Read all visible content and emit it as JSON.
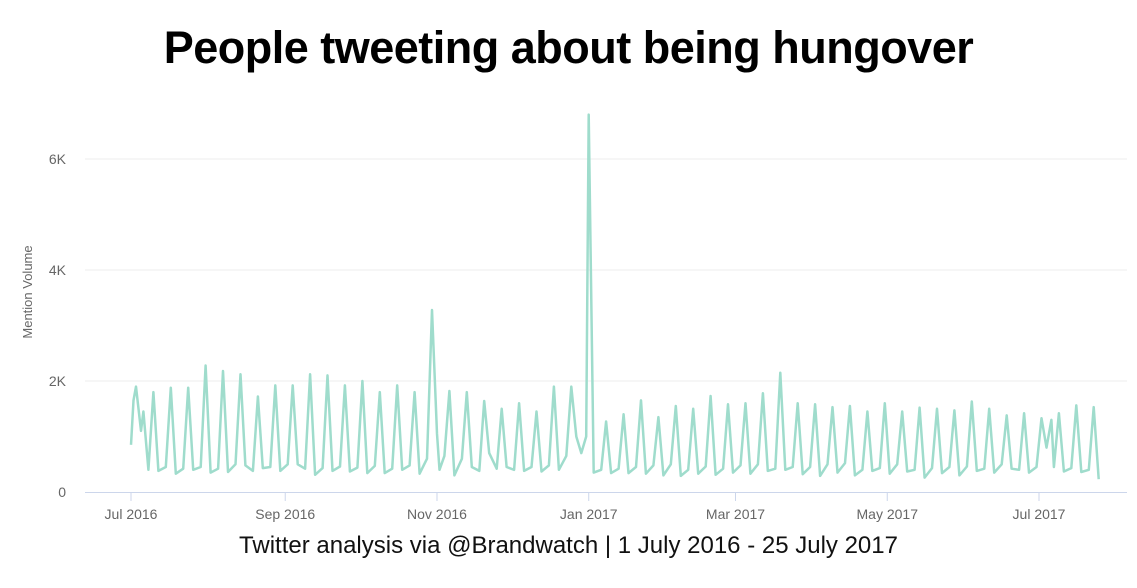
{
  "title": "People tweeting about being hungover",
  "subtitle": "Twitter analysis via @Brandwatch | 1 July 2016 - 25 July 2017",
  "chart_data": {
    "type": "line",
    "ylabel": "Mention Volume",
    "xlabel": "",
    "ylim": [
      0,
      7000
    ],
    "yticks": [
      {
        "v": 0,
        "label": "0"
      },
      {
        "v": 2000,
        "label": "2K"
      },
      {
        "v": 4000,
        "label": "4K"
      },
      {
        "v": 6000,
        "label": "6K"
      }
    ],
    "xticks": [
      {
        "d": "2016-07-01",
        "label": "Jul 2016"
      },
      {
        "d": "2016-09-01",
        "label": "Sep 2016"
      },
      {
        "d": "2016-11-01",
        "label": "Nov 2016"
      },
      {
        "d": "2017-01-01",
        "label": "Jan 2017"
      },
      {
        "d": "2017-03-01",
        "label": "Mar 2017"
      },
      {
        "d": "2017-05-01",
        "label": "May 2017"
      },
      {
        "d": "2017-07-01",
        "label": "Jul 2017"
      }
    ],
    "grid": true,
    "legend": "none",
    "line_color": "#9fdccc",
    "series": [
      {
        "points": [
          [
            "2016-07-01",
            850
          ],
          [
            "2016-07-02",
            1650
          ],
          [
            "2016-07-03",
            1900
          ],
          [
            "2016-07-05",
            1100
          ],
          [
            "2016-07-06",
            1450
          ],
          [
            "2016-07-08",
            400
          ],
          [
            "2016-07-10",
            1800
          ],
          [
            "2016-07-12",
            380
          ],
          [
            "2016-07-15",
            450
          ],
          [
            "2016-07-17",
            1880
          ],
          [
            "2016-07-19",
            330
          ],
          [
            "2016-07-22",
            420
          ],
          [
            "2016-07-24",
            1880
          ],
          [
            "2016-07-26",
            400
          ],
          [
            "2016-07-29",
            450
          ],
          [
            "2016-07-31",
            2280
          ],
          [
            "2016-08-02",
            350
          ],
          [
            "2016-08-05",
            420
          ],
          [
            "2016-08-07",
            2180
          ],
          [
            "2016-08-09",
            360
          ],
          [
            "2016-08-12",
            500
          ],
          [
            "2016-08-14",
            2120
          ],
          [
            "2016-08-16",
            480
          ],
          [
            "2016-08-19",
            380
          ],
          [
            "2016-08-21",
            1720
          ],
          [
            "2016-08-23",
            430
          ],
          [
            "2016-08-26",
            450
          ],
          [
            "2016-08-28",
            1920
          ],
          [
            "2016-08-30",
            380
          ],
          [
            "2016-09-02",
            500
          ],
          [
            "2016-09-04",
            1920
          ],
          [
            "2016-09-06",
            500
          ],
          [
            "2016-09-09",
            420
          ],
          [
            "2016-09-11",
            2120
          ],
          [
            "2016-09-13",
            310
          ],
          [
            "2016-09-16",
            430
          ],
          [
            "2016-09-18",
            2100
          ],
          [
            "2016-09-20",
            380
          ],
          [
            "2016-09-23",
            460
          ],
          [
            "2016-09-25",
            1920
          ],
          [
            "2016-09-27",
            370
          ],
          [
            "2016-09-30",
            440
          ],
          [
            "2016-10-02",
            2000
          ],
          [
            "2016-10-04",
            340
          ],
          [
            "2016-10-07",
            470
          ],
          [
            "2016-10-09",
            1800
          ],
          [
            "2016-10-11",
            340
          ],
          [
            "2016-10-14",
            420
          ],
          [
            "2016-10-16",
            1920
          ],
          [
            "2016-10-18",
            400
          ],
          [
            "2016-10-21",
            480
          ],
          [
            "2016-10-23",
            1800
          ],
          [
            "2016-10-25",
            330
          ],
          [
            "2016-10-28",
            600
          ],
          [
            "2016-10-30",
            3280
          ],
          [
            "2016-11-01",
            1050
          ],
          [
            "2016-11-02",
            400
          ],
          [
            "2016-11-04",
            650
          ],
          [
            "2016-11-06",
            1820
          ],
          [
            "2016-11-08",
            300
          ],
          [
            "2016-11-11",
            600
          ],
          [
            "2016-11-13",
            1800
          ],
          [
            "2016-11-15",
            450
          ],
          [
            "2016-11-18",
            380
          ],
          [
            "2016-11-20",
            1640
          ],
          [
            "2016-11-22",
            700
          ],
          [
            "2016-11-25",
            420
          ],
          [
            "2016-11-27",
            1500
          ],
          [
            "2016-11-29",
            450
          ],
          [
            "2016-12-02",
            400
          ],
          [
            "2016-12-04",
            1600
          ],
          [
            "2016-12-06",
            380
          ],
          [
            "2016-12-09",
            450
          ],
          [
            "2016-12-11",
            1450
          ],
          [
            "2016-12-13",
            370
          ],
          [
            "2016-12-16",
            480
          ],
          [
            "2016-12-18",
            1900
          ],
          [
            "2016-12-20",
            400
          ],
          [
            "2016-12-23",
            650
          ],
          [
            "2016-12-25",
            1900
          ],
          [
            "2016-12-27",
            1000
          ],
          [
            "2016-12-29",
            700
          ],
          [
            "2016-12-31",
            1000
          ],
          [
            "2017-01-01",
            6800
          ],
          [
            "2017-01-03",
            350
          ],
          [
            "2017-01-06",
            400
          ],
          [
            "2017-01-08",
            1270
          ],
          [
            "2017-01-10",
            340
          ],
          [
            "2017-01-13",
            420
          ],
          [
            "2017-01-15",
            1400
          ],
          [
            "2017-01-17",
            340
          ],
          [
            "2017-01-20",
            450
          ],
          [
            "2017-01-22",
            1650
          ],
          [
            "2017-01-24",
            330
          ],
          [
            "2017-01-27",
            480
          ],
          [
            "2017-01-29",
            1350
          ],
          [
            "2017-01-31",
            300
          ],
          [
            "2017-02-03",
            500
          ],
          [
            "2017-02-05",
            1550
          ],
          [
            "2017-02-07",
            290
          ],
          [
            "2017-02-10",
            400
          ],
          [
            "2017-02-12",
            1500
          ],
          [
            "2017-02-14",
            330
          ],
          [
            "2017-02-17",
            460
          ],
          [
            "2017-02-19",
            1730
          ],
          [
            "2017-02-21",
            310
          ],
          [
            "2017-02-24",
            420
          ],
          [
            "2017-02-26",
            1580
          ],
          [
            "2017-02-28",
            350
          ],
          [
            "2017-03-03",
            480
          ],
          [
            "2017-03-05",
            1600
          ],
          [
            "2017-03-07",
            330
          ],
          [
            "2017-03-10",
            500
          ],
          [
            "2017-03-12",
            1780
          ],
          [
            "2017-03-14",
            380
          ],
          [
            "2017-03-17",
            420
          ],
          [
            "2017-03-19",
            2150
          ],
          [
            "2017-03-21",
            400
          ],
          [
            "2017-03-24",
            450
          ],
          [
            "2017-03-26",
            1600
          ],
          [
            "2017-03-28",
            320
          ],
          [
            "2017-03-31",
            450
          ],
          [
            "2017-04-02",
            1580
          ],
          [
            "2017-04-04",
            290
          ],
          [
            "2017-04-07",
            500
          ],
          [
            "2017-04-09",
            1530
          ],
          [
            "2017-04-11",
            350
          ],
          [
            "2017-04-14",
            520
          ],
          [
            "2017-04-16",
            1550
          ],
          [
            "2017-04-18",
            300
          ],
          [
            "2017-04-21",
            400
          ],
          [
            "2017-04-23",
            1450
          ],
          [
            "2017-04-25",
            380
          ],
          [
            "2017-04-28",
            430
          ],
          [
            "2017-04-30",
            1600
          ],
          [
            "2017-05-02",
            330
          ],
          [
            "2017-05-05",
            500
          ],
          [
            "2017-05-07",
            1450
          ],
          [
            "2017-05-09",
            370
          ],
          [
            "2017-05-12",
            400
          ],
          [
            "2017-05-14",
            1520
          ],
          [
            "2017-05-16",
            260
          ],
          [
            "2017-05-19",
            430
          ],
          [
            "2017-05-21",
            1500
          ],
          [
            "2017-05-23",
            340
          ],
          [
            "2017-05-26",
            450
          ],
          [
            "2017-05-28",
            1470
          ],
          [
            "2017-05-30",
            300
          ],
          [
            "2017-06-02",
            460
          ],
          [
            "2017-06-04",
            1630
          ],
          [
            "2017-06-06",
            380
          ],
          [
            "2017-06-09",
            420
          ],
          [
            "2017-06-11",
            1500
          ],
          [
            "2017-06-13",
            350
          ],
          [
            "2017-06-16",
            500
          ],
          [
            "2017-06-18",
            1380
          ],
          [
            "2017-06-20",
            420
          ],
          [
            "2017-06-23",
            400
          ],
          [
            "2017-06-25",
            1420
          ],
          [
            "2017-06-27",
            350
          ],
          [
            "2017-06-30",
            450
          ],
          [
            "2017-07-02",
            1330
          ],
          [
            "2017-07-04",
            800
          ],
          [
            "2017-07-06",
            1300
          ],
          [
            "2017-07-07",
            450
          ],
          [
            "2017-07-09",
            1420
          ],
          [
            "2017-07-11",
            370
          ],
          [
            "2017-07-14",
            430
          ],
          [
            "2017-07-16",
            1560
          ],
          [
            "2017-07-18",
            360
          ],
          [
            "2017-07-21",
            400
          ],
          [
            "2017-07-23",
            1530
          ],
          [
            "2017-07-25",
            230
          ]
        ]
      }
    ]
  }
}
